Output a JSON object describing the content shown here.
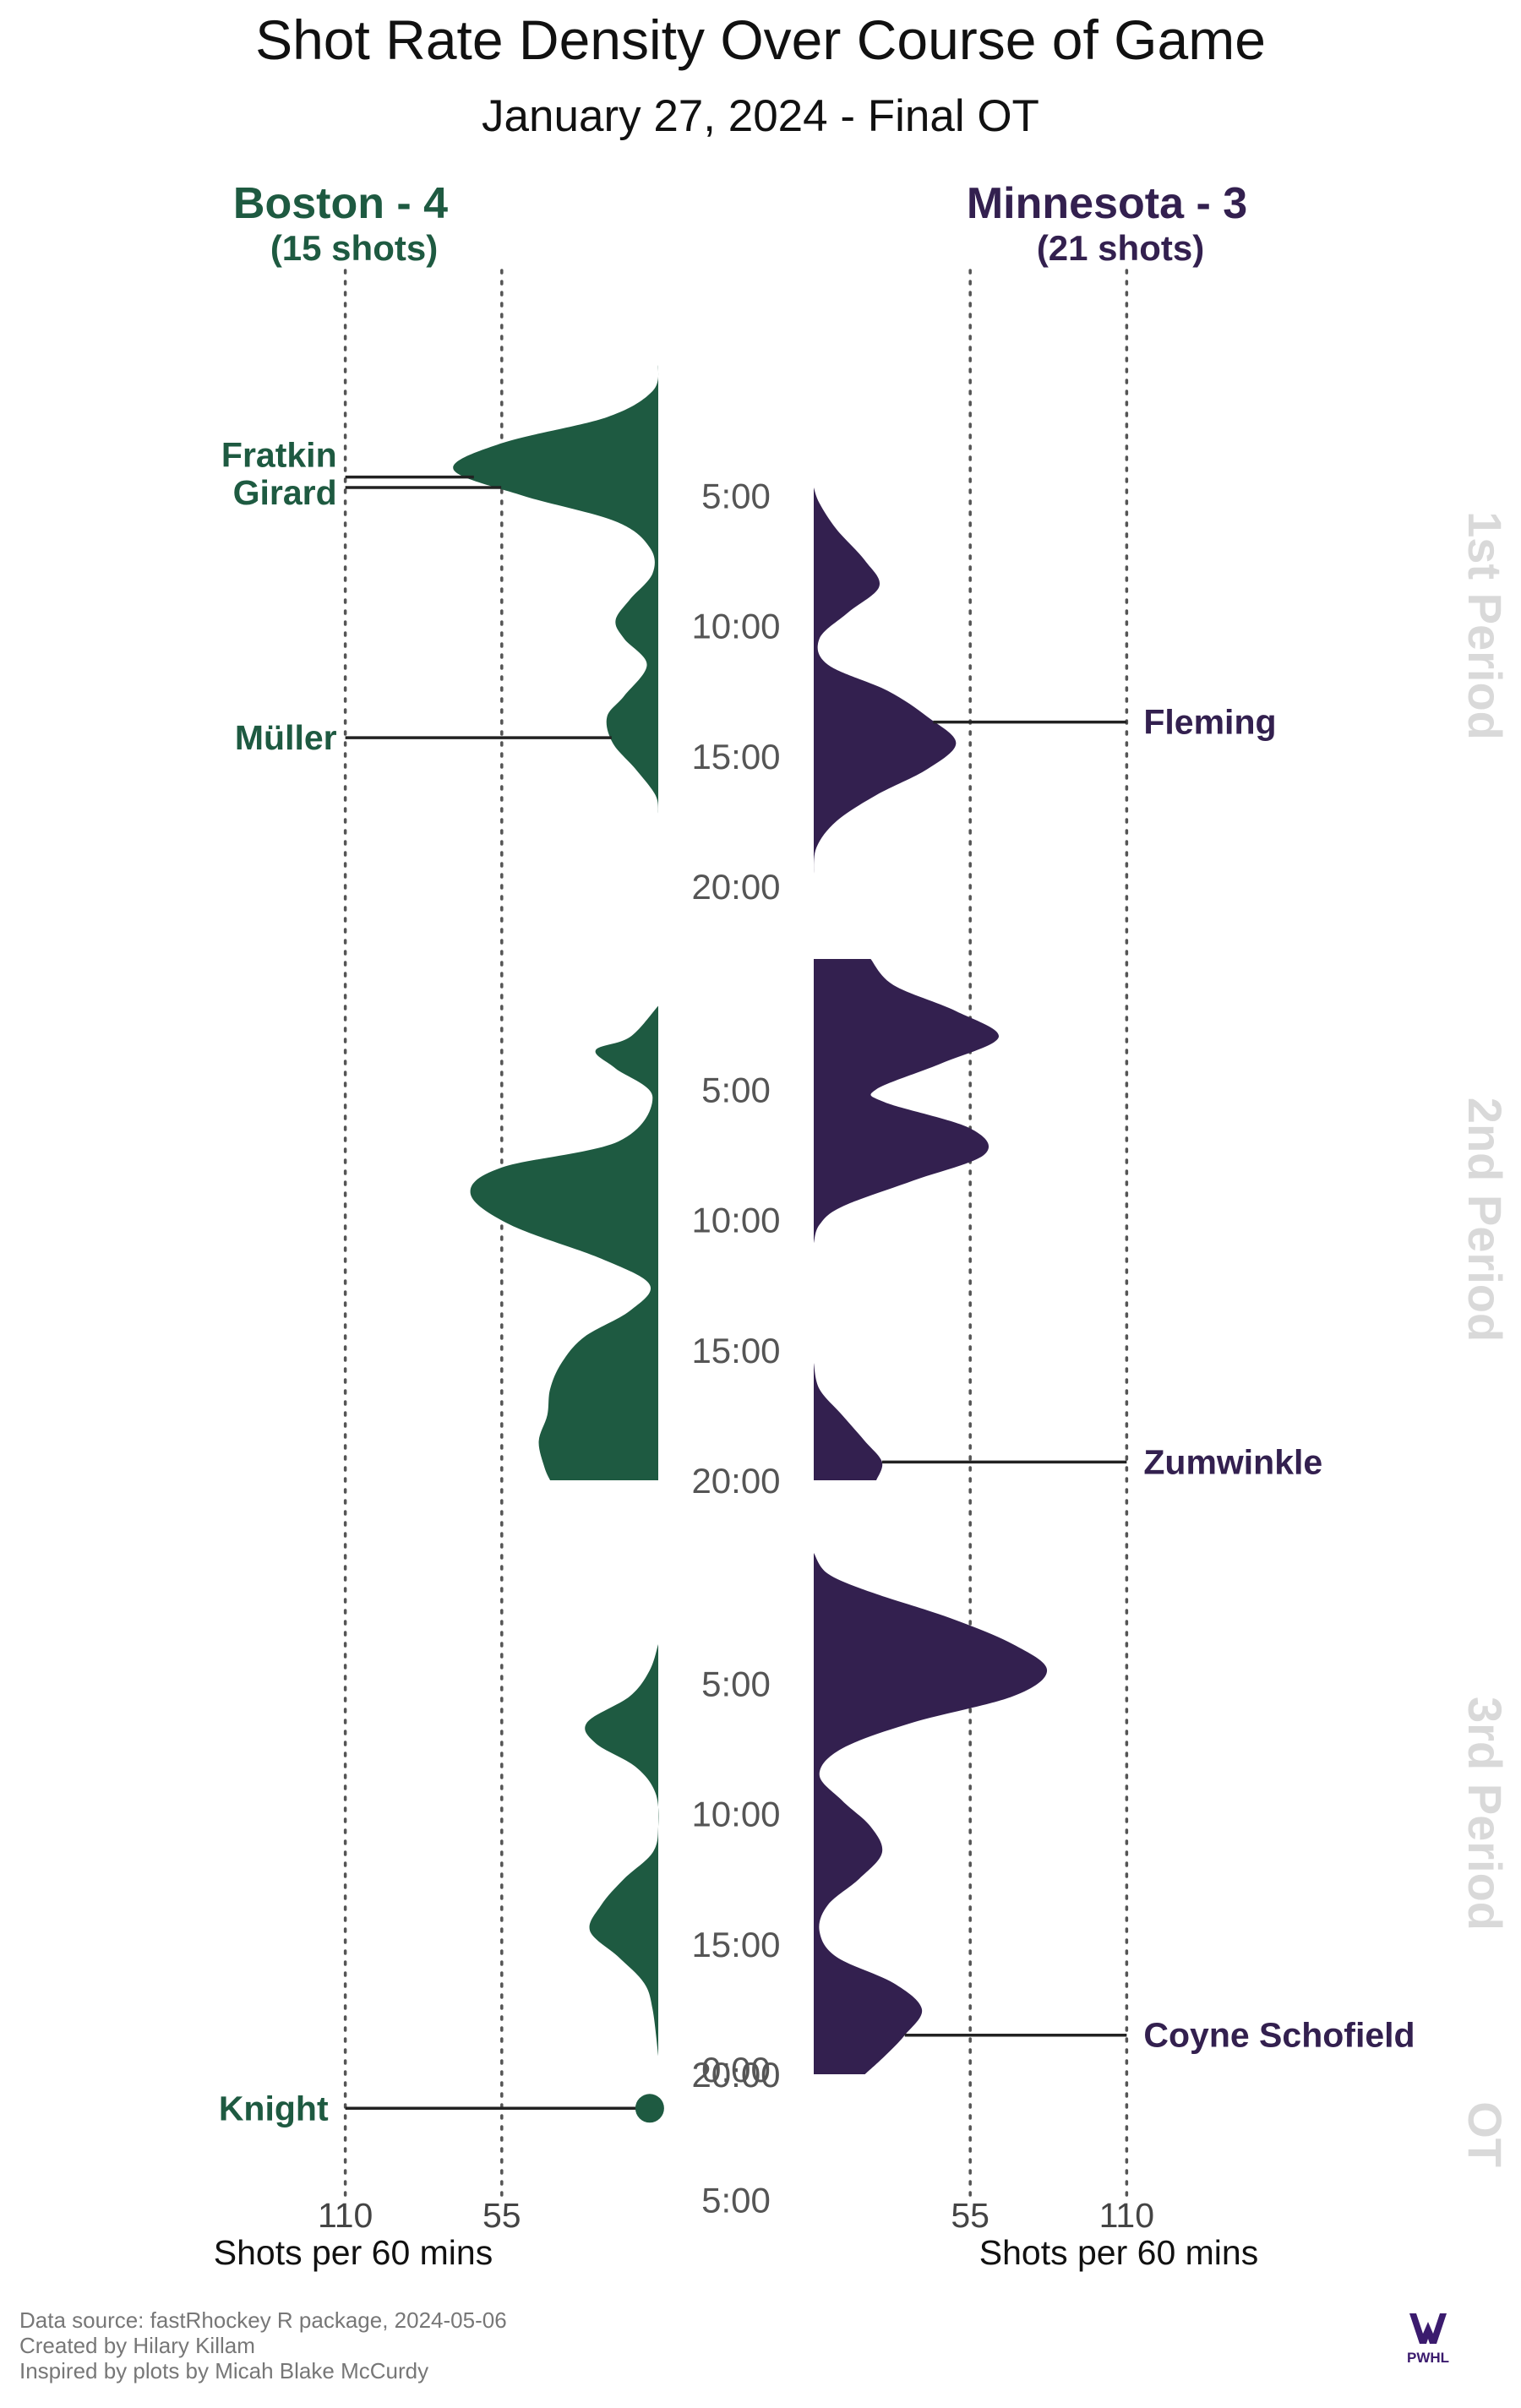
{
  "title": "Shot Rate Density Over Course of Game",
  "subtitle": "January 27, 2024 - Final OT",
  "logo": {
    "text": "PWHL",
    "color": "#3b1b6e"
  },
  "footer": [
    "Data source: fastRhockey R package, 2024-05-06",
    "Created by Hilary Killam",
    "Inspired by plots by Micah Blake McCurdy"
  ],
  "colors": {
    "boston": "#1e5a41",
    "minnesota": "#33204f",
    "period_label": "#d9d9d9"
  },
  "chart_data": {
    "type": "area",
    "orientation": "mirrored-vertical-density",
    "x_unit": "Shots per 60 mins",
    "x_ticks": [
      55,
      110
    ],
    "xlim": [
      0,
      110
    ],
    "grid": "dotted vertical at 55 and 110",
    "periods": [
      {
        "label": "1st Period",
        "length_min": 20,
        "y_ticks": [
          "5:00",
          "10:00",
          "15:00",
          "20:00"
        ]
      },
      {
        "label": "2nd Period",
        "length_min": 20,
        "y_ticks": [
          "5:00",
          "10:00",
          "15:00",
          "20:00"
        ]
      },
      {
        "label": "3rd Period",
        "length_min": 20,
        "y_ticks": [
          "5:00",
          "10:00",
          "15:00",
          "20:00"
        ]
      },
      {
        "label": "OT",
        "length_min": 5,
        "y_ticks": [
          "0:00",
          "5:00"
        ]
      }
    ],
    "teams": [
      {
        "key": "boston",
        "side": "left",
        "label": "Boston - 4",
        "shots_label": "(15 shots)",
        "xlabel": "Shots per 60 mins",
        "color": "#1e5a41",
        "density": [
          {
            "period": 1,
            "from": 0,
            "to": 17.2,
            "points": [
              [
                0,
                0
              ],
              [
                1,
                2
              ],
              [
                2,
                18
              ],
              [
                3,
                55
              ],
              [
                4,
                72
              ],
              [
                5,
                48
              ],
              [
                6,
                15
              ],
              [
                7,
                3
              ],
              [
                8,
                2
              ],
              [
                9,
                10
              ],
              [
                9.8,
                15
              ],
              [
                10.5,
                12
              ],
              [
                11.5,
                4
              ],
              [
                12.7,
                12
              ],
              [
                13.5,
                18
              ],
              [
                14.5,
                16
              ],
              [
                15.5,
                8
              ],
              [
                16.5,
                1
              ],
              [
                17.2,
                0
              ]
            ]
          },
          {
            "period": 2,
            "from": 1.8,
            "to": 20,
            "points": [
              [
                1.8,
                0
              ],
              [
                3,
                10
              ],
              [
                3.5,
                22
              ],
              [
                4.2,
                15
              ],
              [
                5.3,
                2
              ],
              [
                7,
                14
              ],
              [
                8,
                55
              ],
              [
                9,
                66
              ],
              [
                10.2,
                52
              ],
              [
                11.5,
                20
              ],
              [
                12.5,
                3
              ],
              [
                13.5,
                10
              ],
              [
                14.5,
                26
              ],
              [
                15.5,
                34
              ],
              [
                16.5,
                38
              ],
              [
                17.5,
                39
              ],
              [
                18.5,
                42
              ],
              [
                19.5,
                40
              ],
              [
                20,
                38
              ]
            ]
          },
          {
            "period": 3,
            "from": 3.5,
            "to": 19.3,
            "points": [
              [
                3.5,
                0
              ],
              [
                4.5,
                3
              ],
              [
                5.5,
                10
              ],
              [
                6.5,
                25
              ],
              [
                7.3,
                22
              ],
              [
                8.2,
                8
              ],
              [
                9.2,
                1
              ],
              [
                10.5,
                0
              ],
              [
                11.5,
                2
              ],
              [
                12.5,
                12
              ],
              [
                13.5,
                20
              ],
              [
                14.5,
                24
              ],
              [
                15.5,
                14
              ],
              [
                16.5,
                5
              ],
              [
                17.5,
                2
              ],
              [
                19.3,
                0
              ]
            ]
          }
        ],
        "goals": [
          {
            "player": "Fratkin",
            "period": 1,
            "time_min": 4.3
          },
          {
            "player": "Girard",
            "period": 1,
            "time_min": 4.7
          },
          {
            "player": "Müller",
            "period": 1,
            "time_min": 14.3
          },
          {
            "player": "Knight",
            "period": "OT",
            "time_min": 1.5,
            "ot_marker_value": 3
          }
        ]
      },
      {
        "key": "minnesota",
        "side": "right",
        "label": "Minnesota - 3",
        "shots_label": "(21 shots)",
        "xlabel": "Shots per 60 mins",
        "color": "#33204f",
        "density": [
          {
            "period": 1,
            "from": 4.7,
            "to": 19.5,
            "points": [
              [
                4.7,
                0
              ],
              [
                5.3,
                2
              ],
              [
                6.3,
                8
              ],
              [
                7.5,
                18
              ],
              [
                8.5,
                23
              ],
              [
                9.5,
                12
              ],
              [
                10.5,
                2
              ],
              [
                11.5,
                5
              ],
              [
                12.5,
                26
              ],
              [
                13.5,
                40
              ],
              [
                14.5,
                50
              ],
              [
                15.5,
                40
              ],
              [
                16.5,
                22
              ],
              [
                17.5,
                8
              ],
              [
                18.5,
                1
              ],
              [
                19.5,
                0
              ]
            ]
          },
          {
            "period": 2,
            "from": 0,
            "to": 10.9,
            "points": [
              [
                0,
                20
              ],
              [
                1,
                28
              ],
              [
                2,
                50
              ],
              [
                3,
                65
              ],
              [
                4,
                45
              ],
              [
                5,
                22
              ],
              [
                5.5,
                25
              ],
              [
                6.5,
                55
              ],
              [
                7.5,
                60
              ],
              [
                8.5,
                35
              ],
              [
                9.5,
                10
              ],
              [
                10.2,
                2
              ],
              [
                10.9,
                0
              ]
            ]
          },
          {
            "period": 2,
            "from": 15.5,
            "to": 20,
            "points": [
              [
                15.5,
                0
              ],
              [
                16.5,
                2
              ],
              [
                17.5,
                10
              ],
              [
                18.5,
                18
              ],
              [
                19.3,
                24
              ],
              [
                20,
                22
              ]
            ]
          },
          {
            "period": 3,
            "from": 0,
            "to": 20,
            "points": [
              [
                0,
                0
              ],
              [
                0.8,
                5
              ],
              [
                1.5,
                20
              ],
              [
                2.5,
                48
              ],
              [
                3.5,
                70
              ],
              [
                4.5,
                82
              ],
              [
                5.5,
                70
              ],
              [
                6.5,
                35
              ],
              [
                7.5,
                10
              ],
              [
                8.5,
                2
              ],
              [
                9.5,
                10
              ],
              [
                10.5,
                20
              ],
              [
                11.5,
                24
              ],
              [
                12.5,
                16
              ],
              [
                13.5,
                5
              ],
              [
                14.5,
                2
              ],
              [
                15.5,
                8
              ],
              [
                16.5,
                28
              ],
              [
                17.5,
                38
              ],
              [
                18.5,
                32
              ],
              [
                19.3,
                25
              ],
              [
                20,
                18
              ]
            ]
          }
        ],
        "goals": [
          {
            "player": "Fleming",
            "period": 1,
            "time_min": 13.7
          },
          {
            "player": "Zumwinkle",
            "period": 2,
            "time_min": 19.3
          },
          {
            "player": "Coyne Schofield",
            "period": 3,
            "time_min": 18.5
          }
        ]
      }
    ]
  }
}
